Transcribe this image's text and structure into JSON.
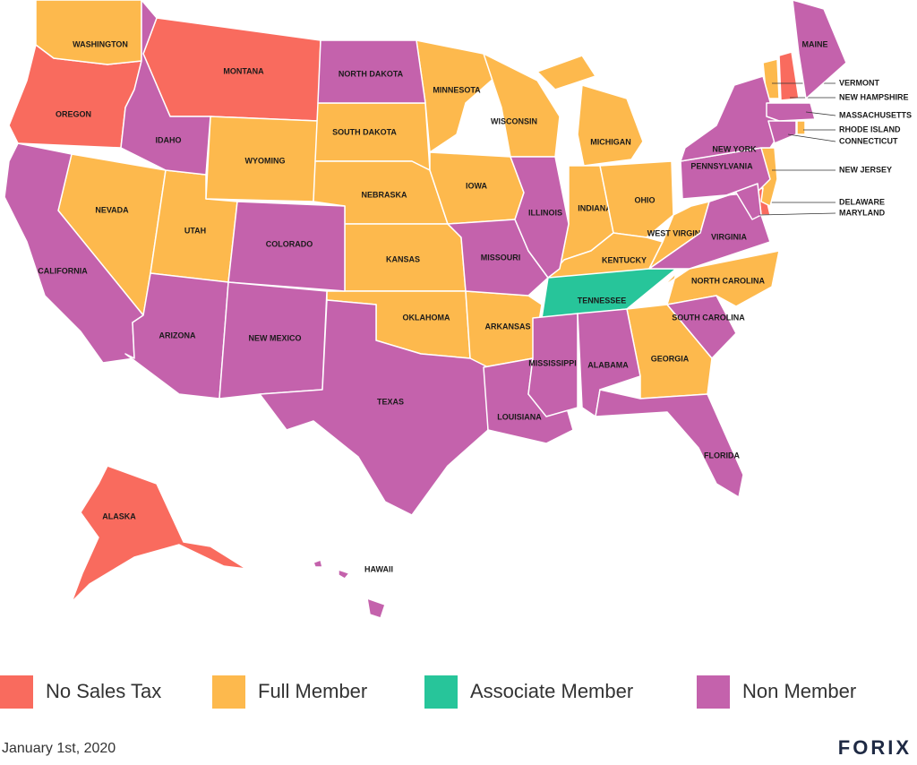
{
  "legend": [
    {
      "label": "No Sales Tax",
      "color": "#f96b5e",
      "states": [
        "OREGON",
        "MONTANA",
        "ALASKA",
        "NEW HAMPSHIRE",
        "DELAWARE"
      ]
    },
    {
      "label": "Full Member",
      "color": "#fdb94d",
      "states": [
        "WASHINGTON",
        "NEVADA",
        "UTAH",
        "WYOMING",
        "SOUTH DAKOTA",
        "NEBRASKA",
        "KANSAS",
        "OKLAHOMA",
        "MINNESOTA",
        "IOWA",
        "WISCONSIN",
        "ARKANSAS",
        "MICHIGAN",
        "INDIANA",
        "OHIO",
        "KENTUCKY",
        "WEST VIRGINIA",
        "NORTH CAROLINA",
        "GEORGIA",
        "VERMONT",
        "RHODE ISLAND",
        "NEW JERSEY"
      ]
    },
    {
      "label": "Associate Member",
      "color": "#27c59a",
      "states": [
        "TENNESSEE"
      ]
    },
    {
      "label": "Non Member",
      "color": "#c462ac",
      "states": [
        "IDAHO",
        "CALIFORNIA",
        "ARIZONA",
        "COLORADO",
        "NEW MEXICO",
        "NORTH DAKOTA",
        "TEXAS",
        "MISSOURI",
        "ILLINOIS",
        "LOUISIANA",
        "MISSISSIPPI",
        "ALABAMA",
        "FLORIDA",
        "SOUTH CAROLINA",
        "VIRGINIA",
        "PENNSYLVANIA",
        "NEW YORK",
        "MAINE",
        "MASSACHUSETTS",
        "CONNECTICUT",
        "MARYLAND",
        "HAWAII"
      ]
    }
  ],
  "footer": {
    "date": "January 1st, 2020",
    "logo": "FORIX"
  }
}
